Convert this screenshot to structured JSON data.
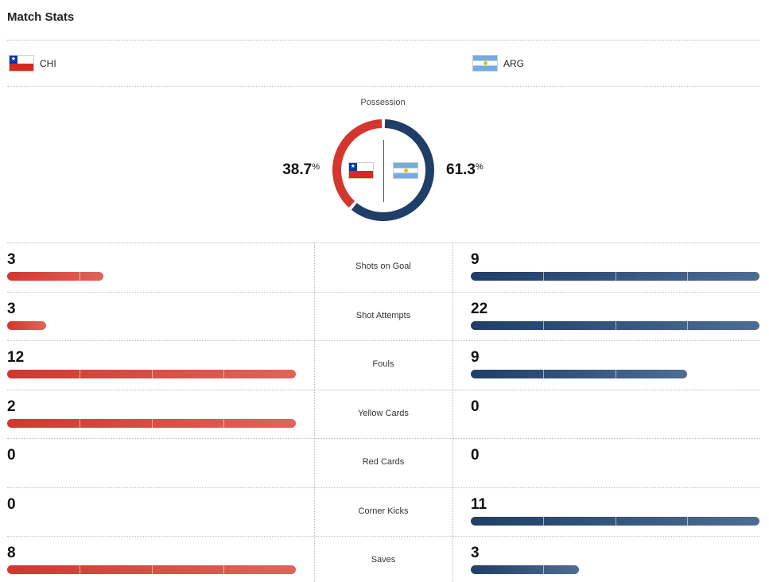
{
  "header": {
    "title": "Match Stats"
  },
  "teams": {
    "home": {
      "abbr": "CHI",
      "flag": "chile-flag-icon",
      "color": "#d3362f"
    },
    "away": {
      "abbr": "ARG",
      "flag": "argentina-flag-icon",
      "color": "#1f3e68"
    }
  },
  "possession": {
    "label": "Possession",
    "home_value": "38.7",
    "away_value": "61.3",
    "unit": "%",
    "home_fraction": 0.387,
    "away_fraction": 0.613
  },
  "stats": [
    {
      "label": "Shots on Goal",
      "home": "3",
      "away": "9",
      "home_fill": 0.333,
      "away_fill": 1.0
    },
    {
      "label": "Shot Attempts",
      "home": "3",
      "away": "22",
      "home_fill": 0.136,
      "away_fill": 1.0
    },
    {
      "label": "Fouls",
      "home": "12",
      "away": "9",
      "home_fill": 1.0,
      "away_fill": 0.75
    },
    {
      "label": "Yellow Cards",
      "home": "2",
      "away": "0",
      "home_fill": 1.0,
      "away_fill": 0
    },
    {
      "label": "Red Cards",
      "home": "0",
      "away": "0",
      "home_fill": 0,
      "away_fill": 0
    },
    {
      "label": "Corner Kicks",
      "home": "0",
      "away": "11",
      "home_fill": 0,
      "away_fill": 1.0
    },
    {
      "label": "Saves",
      "home": "8",
      "away": "3",
      "home_fill": 1.0,
      "away_fill": 0.375
    }
  ]
}
